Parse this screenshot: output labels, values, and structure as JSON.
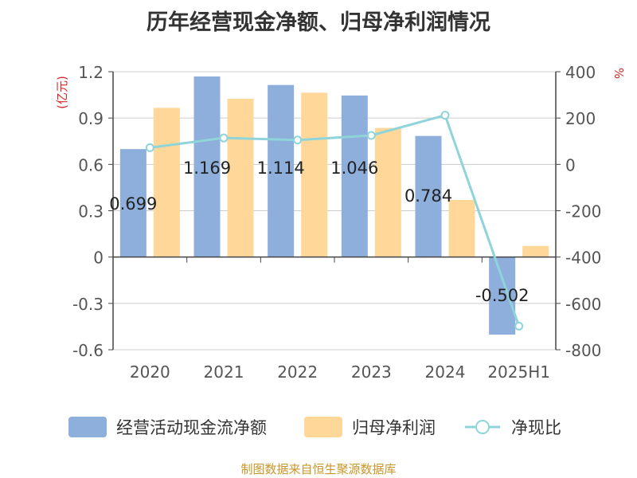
{
  "title": "历年经营现金净额、归母净利润情况",
  "source_note": "制图数据来自恒生聚源数据库",
  "colors": {
    "bar_cash": "#8eaedc",
    "bar_profit": "#ffd899",
    "line_ratio": "#8ed4d9",
    "unit_text": "#d62728",
    "axis": "#444444",
    "grid": "#cccccc",
    "tick_text": "#555555"
  },
  "chart_data": {
    "type": "bar",
    "title": "历年经营现金净额、归母净利润情况",
    "categories": [
      "2020",
      "2021",
      "2022",
      "2023",
      "2024",
      "2025H1"
    ],
    "y_left": {
      "unit": "(亿元)",
      "range": [
        -0.6,
        1.2
      ],
      "ticks": [
        1.2,
        0.9,
        0.6,
        0.3,
        0,
        -0.3,
        -0.6
      ],
      "tick_labels": [
        "1.2",
        "0.9",
        "0.6",
        "0.3",
        "0",
        "-0.3",
        "-0.6"
      ]
    },
    "y_right": {
      "unit": "%",
      "range": [
        -800,
        400
      ],
      "ticks": [
        400,
        200,
        0,
        -200,
        -400,
        -600,
        -800
      ],
      "tick_labels": [
        "400",
        "200",
        "0",
        "-200",
        "-400",
        "-600",
        "-800"
      ]
    },
    "grid": true,
    "legend_position": "bottom",
    "series": [
      {
        "name": "经营活动现金流净额",
        "type": "bar",
        "axis": "left",
        "values": [
          0.699,
          1.169,
          1.114,
          1.046,
          0.784,
          -0.502
        ],
        "data_labels": [
          "0.699",
          "1.169",
          "1.114",
          "1.046",
          "0.784",
          "-0.502"
        ]
      },
      {
        "name": "归母净利润",
        "type": "bar",
        "axis": "left",
        "values": [
          0.966,
          1.025,
          1.064,
          0.836,
          0.37,
          0.072
        ]
      },
      {
        "name": "净现比",
        "type": "line",
        "axis": "right",
        "values": [
          72,
          114,
          105,
          125,
          212,
          -698
        ]
      }
    ]
  }
}
